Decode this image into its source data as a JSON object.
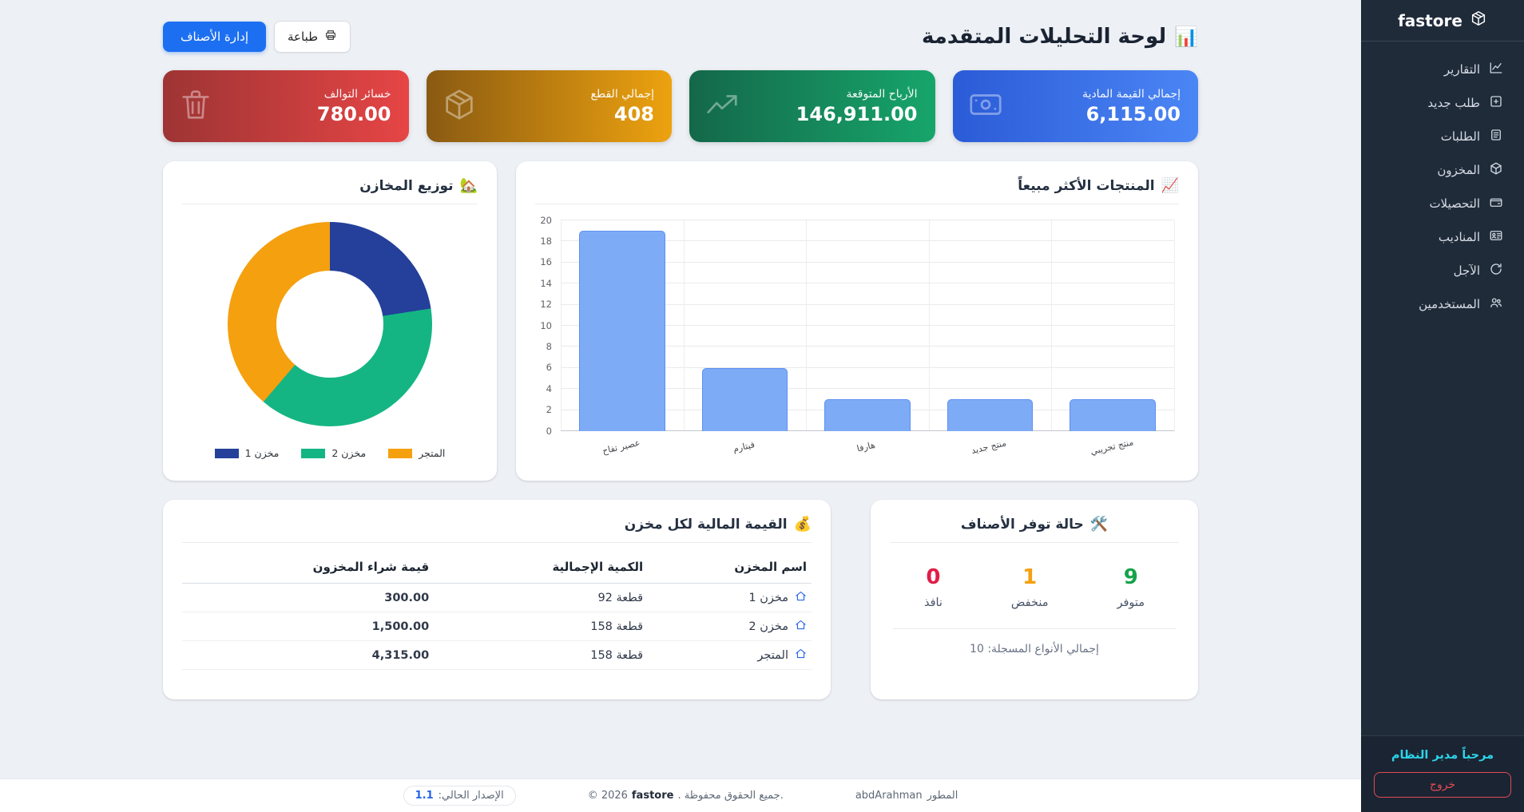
{
  "app": {
    "brand": "fastore",
    "brand_icon": "package-cube-icon"
  },
  "sidebar": {
    "items": [
      {
        "label": "التقارير",
        "icon": "reports-chart-icon"
      },
      {
        "label": "طلب جديد",
        "icon": "new-order-plus-icon"
      },
      {
        "label": "الطلبات",
        "icon": "orders-list-icon"
      },
      {
        "label": "المخزون",
        "icon": "inventory-box-icon"
      },
      {
        "label": "التحصيلات",
        "icon": "collections-wallet-icon"
      },
      {
        "label": "المناديب",
        "icon": "reps-idcard-icon"
      },
      {
        "label": "الآجل",
        "icon": "deferred-refresh-icon"
      },
      {
        "label": "المستخدمين",
        "icon": "users-icon"
      }
    ],
    "welcome": "مرحباً مدير النظام",
    "logout_label": "خروج"
  },
  "header": {
    "title": "لوحة التحليلات المتقدمة",
    "title_icon": "📊",
    "buttons": {
      "print_label": "طباعة",
      "print_icon": "printer-icon",
      "manage_label": "إدارة الأصناف"
    }
  },
  "stat_cards": [
    {
      "label": "إجمالي القيمة المادية",
      "value": "6,115.00",
      "icon": "cash-icon",
      "gradient": [
        "#2b5bd7",
        "#4b86f5"
      ]
    },
    {
      "label": "الأرباح المتوقعة",
      "value": "146,911.00",
      "icon": "trend-up-icon",
      "gradient": [
        "#14684a",
        "#17a56b"
      ]
    },
    {
      "label": "إجمالي القطع",
      "value": "408",
      "icon": "package-icon",
      "gradient": [
        "#8a5a12",
        "#eda20f"
      ]
    },
    {
      "label": "خسائر التوالف",
      "value": "780.00",
      "icon": "trash-icon",
      "gradient": [
        "#9e3434",
        "#e64545"
      ]
    }
  ],
  "chart_data": {
    "top_products": {
      "type": "bar",
      "title": "المنتجات الأكثر مبيعاً",
      "title_icon": "📈",
      "categories": [
        "عصير تفاح",
        "فيتارم",
        "هارفا",
        "منتج جديد",
        "منتج تجريبي"
      ],
      "values": [
        19,
        6,
        3,
        3,
        3
      ],
      "ylim": [
        0,
        20
      ],
      "ytick_step": 2,
      "bar_color": "#7dabf6",
      "bar_border": "#5e8ff1",
      "grid": true,
      "legend": "none"
    },
    "warehouse_distribution": {
      "type": "pie",
      "title": "توزيع المخازن",
      "title_icon": "🏡",
      "labels": [
        "مخزن 1",
        "مخزن 2",
        "المتجر"
      ],
      "values": [
        92,
        158,
        158
      ],
      "colors": [
        "#24409a",
        "#14b583",
        "#f5a00f"
      ],
      "donut": true,
      "legend_position": "bottom"
    }
  },
  "value_table": {
    "title": "القيمة المالية لكل مخزن",
    "title_icon": "💰",
    "columns": [
      "اسم المخزن",
      "الكمية الإجمالية",
      "قيمة شراء المخزون"
    ],
    "rows": [
      {
        "name": "مخزن 1",
        "qty": "92 قطعة",
        "value": "300.00"
      },
      {
        "name": "مخزن 2",
        "qty": "158 قطعة",
        "value": "1,500.00"
      },
      {
        "name": "المتجر",
        "qty": "158 قطعة",
        "value": "4,315.00"
      }
    ]
  },
  "availability": {
    "title": "حالة توفر الأصناف",
    "title_icon": "🛠️",
    "stats": [
      {
        "value": "9",
        "label": "متوفر",
        "color": "#16a34a"
      },
      {
        "value": "1",
        "label": "منخفض",
        "color": "#f5a00f"
      },
      {
        "value": "0",
        "label": "نافذ",
        "color": "#e11d48"
      }
    ],
    "total_note": "إجمالي الأنواع المسجلة: 10"
  },
  "footer": {
    "developer_label": "المطور",
    "developer_name": "abdArahman",
    "copy_prefix": "© 2026",
    "brand": "fastore",
    "copy_suffix": ". جميع الحقوق محفوظة.",
    "version_label": "الإصدار الحالي:",
    "version": "1.1"
  }
}
